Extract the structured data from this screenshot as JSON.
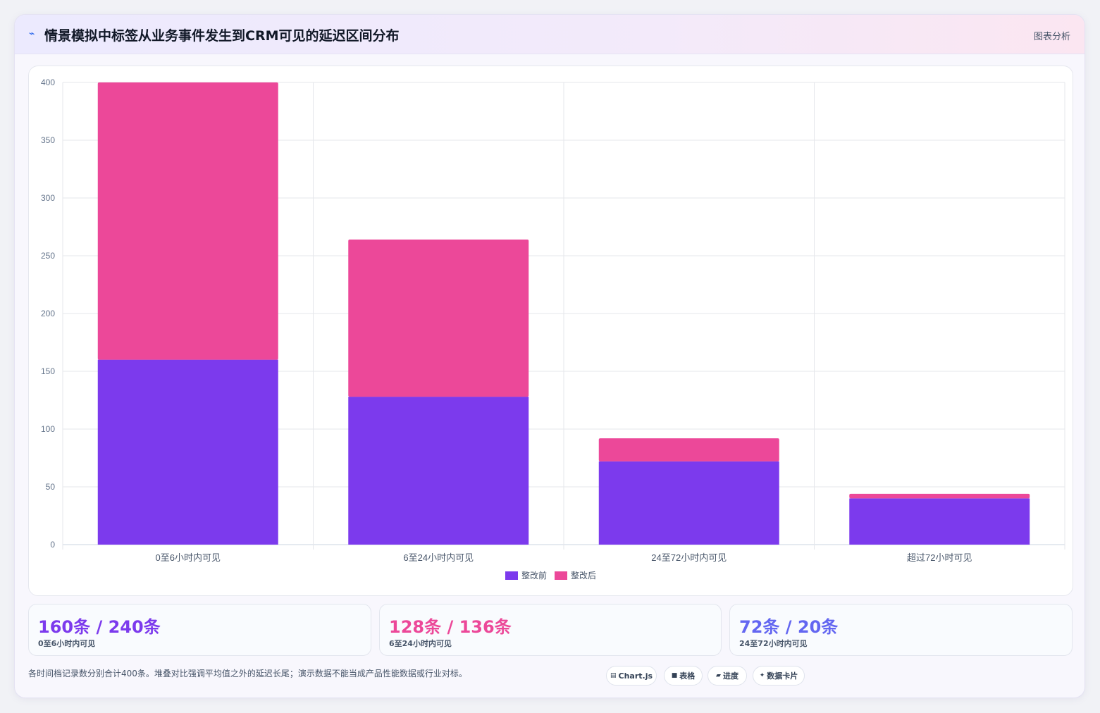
{
  "header": {
    "icon": "trend-line-icon",
    "title": "情景模拟中标签从业务事件发生到CRM可见的延迟区间分布",
    "tag": "图表分析"
  },
  "chart_data": {
    "type": "bar",
    "stacked": true,
    "categories": [
      "0至6小时内可见",
      "6至24小时内可见",
      "24至72小时内可见",
      "超过72小时可见"
    ],
    "series": [
      {
        "name": "整改前",
        "values": [
          160,
          128,
          72,
          40
        ],
        "color": "#7c3aed"
      },
      {
        "name": "整改后",
        "values": [
          240,
          136,
          20,
          4
        ],
        "color": "#ec4899"
      }
    ],
    "ylim": [
      0,
      400
    ],
    "yticks": [
      "0",
      "50",
      "100",
      "150",
      "200",
      "250",
      "300",
      "350",
      "400"
    ],
    "grid": true,
    "legend": "bottom"
  },
  "stats": [
    {
      "value": "160条 / 240条",
      "label": "0至6小时内可见",
      "color": "#7c3aed"
    },
    {
      "value": "128条 / 136条",
      "label": "6至24小时内可见",
      "color": "#ec4899"
    },
    {
      "value": "72条 / 20条",
      "label": "24至72小时内可见",
      "color": "#6366f1"
    }
  ],
  "footnote": "各时间档记录数分别合计400条。堆叠对比强调平均值之外的延迟长尾；演示数据不能当成产品性能数据或行业对标。",
  "pills": [
    {
      "icon": "bar-chart-icon",
      "glyph": "▤",
      "label": "Chart.js"
    },
    {
      "icon": "table-icon",
      "glyph": "■",
      "label": "表格"
    },
    {
      "icon": "progress-icon",
      "glyph": "▰",
      "label": "进度"
    },
    {
      "icon": "sparkle-icon",
      "glyph": "✦",
      "label": "数据卡片"
    }
  ]
}
